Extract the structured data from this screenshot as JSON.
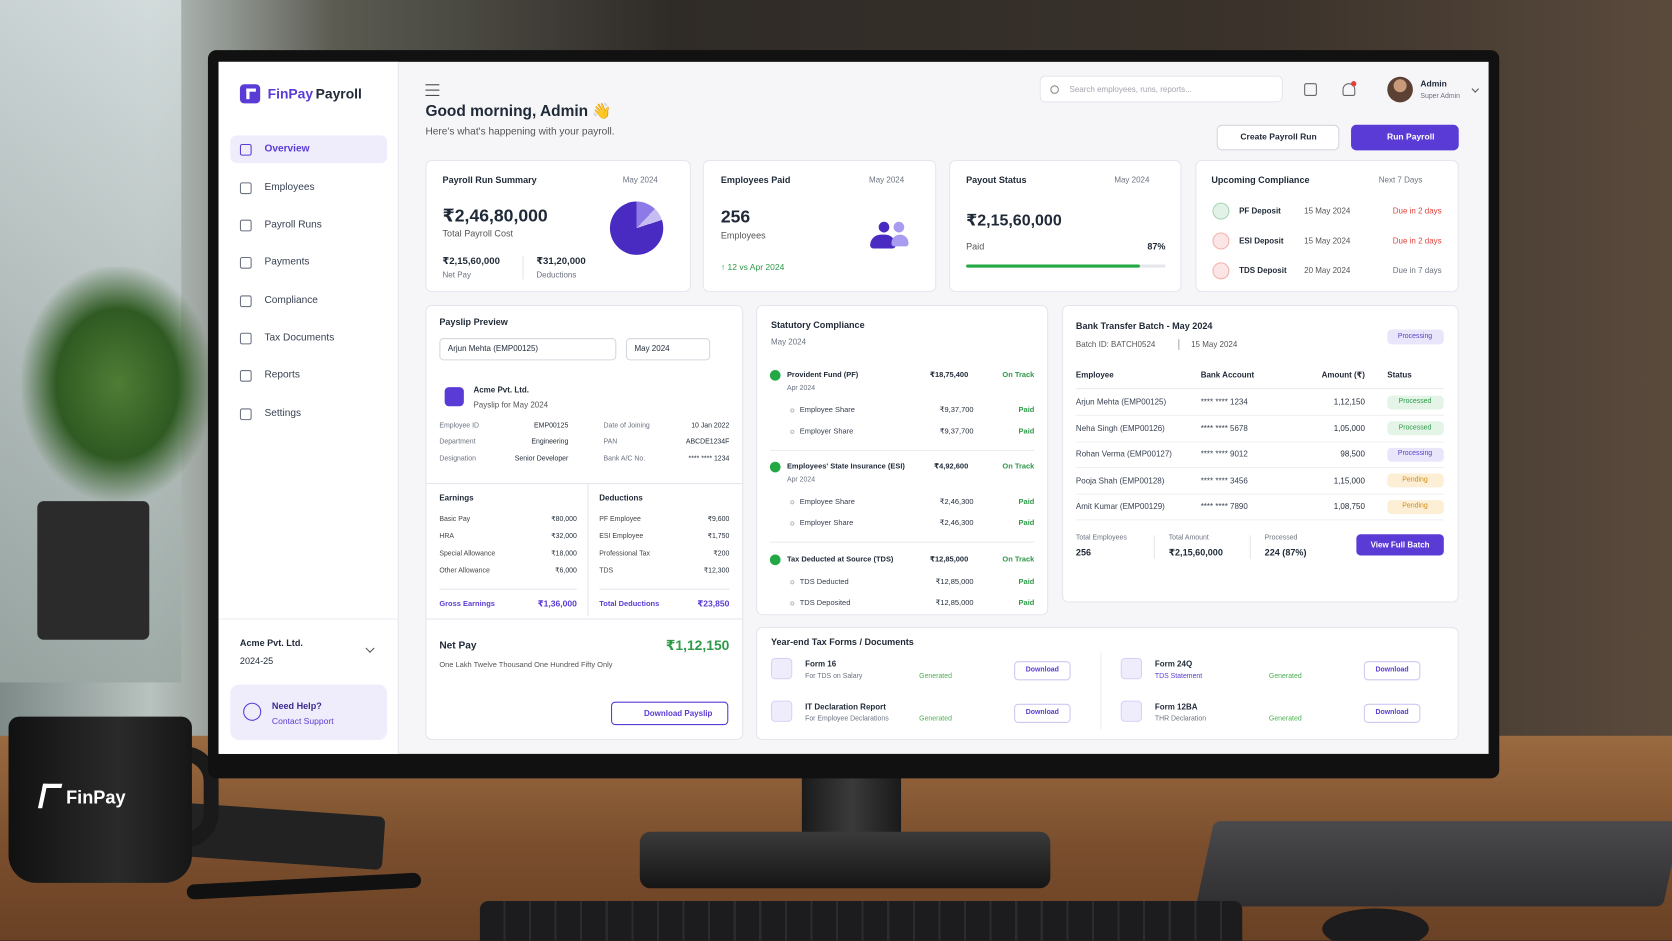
{
  "mug_brand": "FinPay",
  "sidebar": {
    "brand": {
      "name": "FinPay",
      "product": "Payroll"
    },
    "nav": [
      "Overview",
      "Employees",
      "Payroll Runs",
      "Payments",
      "Compliance",
      "Tax Documents",
      "Reports",
      "Settings"
    ],
    "company": "Acme Pvt. Ltd.",
    "fiscal_year": "2024-25",
    "help": {
      "title": "Need Help?",
      "link": "Contact Support"
    }
  },
  "header": {
    "search_placeholder": "Search employees, runs, reports...",
    "user": {
      "name": "Admin",
      "role": "Super Admin"
    },
    "greeting": "Good morning, Admin 👋",
    "subtitle": "Here's what's happening with your payroll.",
    "buttons": [
      "Create Payroll Run",
      "Run Payroll"
    ]
  },
  "run_summary": {
    "title": "Payroll Run Summary",
    "period": "May 2024",
    "total": "₹2,46,80,000",
    "total_label": "Total Payroll Cost",
    "net_pay": "₹2,15,60,000",
    "net_pay_label": "Net Pay",
    "deductions": "₹31,20,000",
    "deductions_label": "Deductions"
  },
  "employees_paid": {
    "title": "Employees Paid",
    "period": "May 2024",
    "count": "256",
    "count_label": "Employees",
    "change": "↑ 12 vs Apr 2024"
  },
  "payout_status": {
    "title": "Payout Status",
    "period": "May 2024",
    "amount": "₹2,15,60,000",
    "status": "Paid",
    "progress": {
      "value": 87,
      "label": "87%"
    }
  },
  "upcoming_compliance": {
    "title": "Upcoming Compliance",
    "range": "Next 7 Days",
    "items": [
      {
        "name": "PF Deposit",
        "date": "15 May 2024",
        "due": "Due in 2 days",
        "due_color": "#e0413a",
        "badge_color": "#2e9a4a"
      },
      {
        "name": "ESI Deposit",
        "date": "15 May 2024",
        "due": "Due in 2 days",
        "due_color": "#e0413a",
        "badge_color": "#e0413a"
      },
      {
        "name": "TDS Deposit",
        "date": "20 May 2024",
        "due": "Due in 7 days",
        "due_color": "#6b7280",
        "badge_color": "#e0413a"
      }
    ]
  },
  "payslip": {
    "title": "Payslip Preview",
    "employee_select": "Arjun Mehta (EMP00125)",
    "month_select": "May 2024",
    "company": "Acme Pvt. Ltd.",
    "subtitle": "Payslip for May 2024",
    "details_left": [
      [
        "Employee ID",
        "EMP00125"
      ],
      [
        "Department",
        "Engineering"
      ],
      [
        "Designation",
        "Senior Developer"
      ]
    ],
    "details_right": [
      [
        "Date of Joining",
        "10 Jan 2022"
      ],
      [
        "PAN",
        "ABCDE1234F"
      ],
      [
        "Bank A/C No.",
        "**** **** 1234"
      ]
    ],
    "earnings_title": "Earnings",
    "earnings": [
      [
        "Basic Pay",
        "₹80,000"
      ],
      [
        "HRA",
        "₹32,000"
      ],
      [
        "Special Allowance",
        "₹18,000"
      ],
      [
        "Other Allowance",
        "₹6,000"
      ]
    ],
    "gross": [
      "Gross Earnings",
      "₹1,36,000"
    ],
    "deductions_title": "Deductions",
    "deductions": [
      [
        "PF Employee",
        "₹9,600"
      ],
      [
        "ESI Employee",
        "₹1,750"
      ],
      [
        "Professional Tax",
        "₹200"
      ],
      [
        "TDS",
        "₹12,300"
      ]
    ],
    "total_deductions": [
      "Total Deductions",
      "₹23,850"
    ],
    "net_pay_label": "Net Pay",
    "net_pay": "₹1,12,150",
    "net_pay_words": "One Lakh Twelve Thousand One Hundred Fifty Only",
    "download": "Download Payslip"
  },
  "statutory": {
    "title": "Statutory Compliance",
    "period": "May 2024",
    "sections": [
      {
        "name": "Provident Fund (PF)",
        "amount": "₹18,75,400",
        "status": "On Track",
        "period": "Apr 2024",
        "rows": [
          [
            "Employee Share",
            "₹9,37,700",
            "Paid"
          ],
          [
            "Employer Share",
            "₹9,37,700",
            "Paid"
          ]
        ]
      },
      {
        "name": "Employees' State Insurance (ESI)",
        "amount": "₹4,92,600",
        "status": "On Track",
        "period": "Apr 2024",
        "rows": [
          [
            "Employee Share",
            "₹2,46,300",
            "Paid"
          ],
          [
            "Employer Share",
            "₹2,46,300",
            "Paid"
          ]
        ]
      },
      {
        "name": "Tax Deducted at Source (TDS)",
        "amount": "₹12,85,000",
        "status": "On Track",
        "rows": [
          [
            "TDS Deducted",
            "₹12,85,000",
            "Paid"
          ],
          [
            "TDS Deposited",
            "₹12,85,000",
            "Paid"
          ]
        ]
      }
    ]
  },
  "bank_batch": {
    "title": "Bank Transfer Batch - May 2024",
    "status": "Processing",
    "batch_id": "Batch ID: BATCH0524",
    "date": "15 May 2024",
    "columns": [
      "Employee",
      "Bank Account",
      "Amount (₹)",
      "Status"
    ],
    "rows": [
      {
        "employee": "Arjun Mehta (EMP00125)",
        "account": "**** **** 1234",
        "amount": "1,12,150",
        "status": "Processed",
        "status_color": "#2e9a4a",
        "status_bg": "#e4f5e8"
      },
      {
        "employee": "Neha Singh (EMP00126)",
        "account": "**** **** 5678",
        "amount": "1,05,000",
        "status": "Processed",
        "status_color": "#2e9a4a",
        "status_bg": "#e4f5e8"
      },
      {
        "employee": "Rohan Verma (EMP00127)",
        "account": "**** **** 9012",
        "amount": "98,500",
        "status": "Processing",
        "status_color": "#5443c9",
        "status_bg": "#e9e6fb"
      },
      {
        "employee": "Pooja Shah (EMP00128)",
        "account": "**** **** 3456",
        "amount": "1,15,000",
        "status": "Pending",
        "status_color": "#d38b12",
        "status_bg": "#fcefd6"
      },
      {
        "employee": "Amit Kumar (EMP00129)",
        "account": "**** **** 7890",
        "amount": "1,08,750",
        "status": "Pending",
        "status_color": "#d38b12",
        "status_bg": "#fcefd6"
      }
    ],
    "totals": [
      [
        "Total Employees",
        "256"
      ],
      [
        "Total Amount",
        "₹2,15,60,000"
      ],
      [
        "Processed",
        "224 (87%)"
      ]
    ],
    "button": "View Full Batch"
  },
  "tax_forms": {
    "title": "Year-end Tax Forms / Documents",
    "items": [
      {
        "name": "Form 16",
        "desc": "For TDS on Salary",
        "status": "Generated",
        "action": "Download"
      },
      {
        "name": "IT Declaration Report",
        "desc": "For Employee Declarations",
        "status": "Generated",
        "action": "Download"
      },
      {
        "name": "Form 24Q",
        "desc": "TDS Statement",
        "status": "Generated",
        "action": "Download"
      },
      {
        "name": "Form 12BA",
        "desc": "THR Declaration",
        "status": "Generated",
        "action": "Download"
      }
    ]
  }
}
